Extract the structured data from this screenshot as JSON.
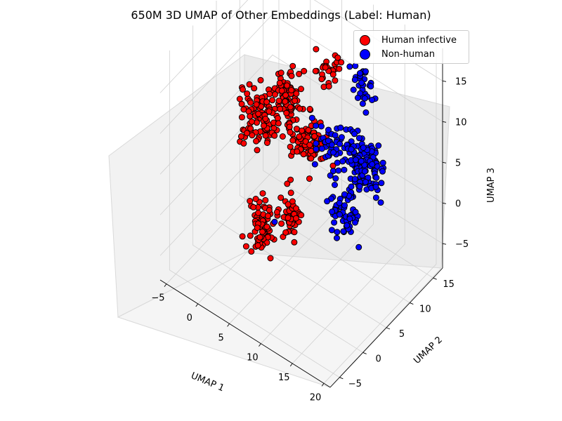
{
  "chart_data": {
    "type": "scatter",
    "title": "650M 3D UMAP of Other Embeddings (Label: Human)",
    "projection": "3d",
    "grid": true,
    "legend_placement": "top-right",
    "axes": {
      "x": {
        "label": "UMAP 1",
        "ticks": [
          "−5",
          "0",
          "5",
          "10",
          "15",
          "20"
        ],
        "range": [
          -6,
          21
        ]
      },
      "y": {
        "label": "UMAP 2",
        "ticks": [
          "−5",
          "0",
          "5",
          "10",
          "15"
        ],
        "range": [
          -7,
          17
        ]
      },
      "z": {
        "label": "UMAP 3",
        "ticks": [
          "−5",
          "0",
          "5",
          "10",
          "15"
        ],
        "range": [
          -8,
          19
        ]
      }
    },
    "series": [
      {
        "name": "Human infective",
        "color": "#ff0000",
        "edge_color": "#000000",
        "clusters": [
          {
            "center": [
              1.5,
              4,
              9
            ],
            "spread": [
              1.5,
              1.0,
              1.5
            ],
            "count": 90
          },
          {
            "center": [
              3,
              8,
              10
            ],
            "spread": [
              1.2,
              0.9,
              1.2
            ],
            "count": 70
          },
          {
            "center": [
              4.5,
              10,
              4
            ],
            "spread": [
              1.4,
              1.0,
              1.4
            ],
            "count": 90
          },
          {
            "center": [
              7,
              11,
              13
            ],
            "spread": [
              0.9,
              0.8,
              1.0
            ],
            "count": 30
          },
          {
            "center": [
              5,
              0,
              0
            ],
            "spread": [
              0.8,
              0.7,
              1.5
            ],
            "count": 70
          },
          {
            "center": [
              7,
              3,
              0
            ],
            "spread": [
              0.8,
              0.6,
              1.2
            ],
            "count": 45
          },
          {
            "center": [
              -2,
              5,
              4
            ],
            "spread": [
              0.5,
              0.5,
              0.5
            ],
            "count": 4
          }
        ]
      },
      {
        "name": "Non-human",
        "color": "#0000ff",
        "edge_color": "#000000",
        "clusters": [
          {
            "center": [
              13,
              10,
              6
            ],
            "spread": [
              1.8,
              1.1,
              1.6
            ],
            "count": 90
          },
          {
            "center": [
              15.5,
              8,
              6
            ],
            "spread": [
              1.1,
              0.9,
              1.6
            ],
            "count": 70
          },
          {
            "center": [
              12,
              12,
              13
            ],
            "spread": [
              0.9,
              0.9,
              1.4
            ],
            "count": 30
          },
          {
            "center": [
              15,
              4,
              4
            ],
            "spread": [
              1.0,
              0.8,
              1.4
            ],
            "count": 60
          },
          {
            "center": [
              9,
              9,
              6
            ],
            "spread": [
              1.0,
              0.8,
              1.2
            ],
            "count": 35
          },
          {
            "center": [
              8,
              -1,
              2
            ],
            "spread": [
              0.3,
              0.3,
              0.3
            ],
            "count": 1
          }
        ]
      }
    ]
  }
}
